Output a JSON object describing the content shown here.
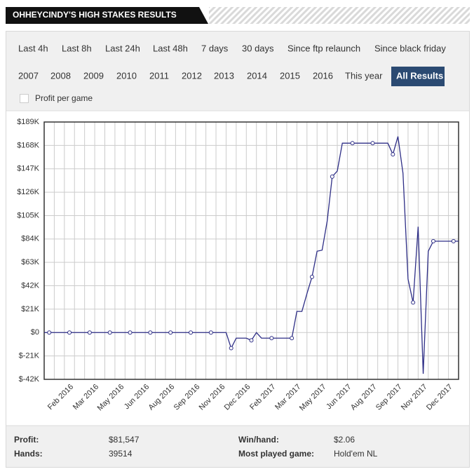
{
  "header": {
    "title": "OHHEYCINDY'S HIGH STAKES RESULTS"
  },
  "filters": {
    "periods": [
      "Last 4h",
      "Last 8h",
      "Last 24h",
      "Last 48h",
      "7 days",
      "30 days",
      "Since ftp relaunch",
      "Since black friday"
    ],
    "years": [
      "2007",
      "2008",
      "2009",
      "2010",
      "2011",
      "2012",
      "2013",
      "2014",
      "2015",
      "2016",
      "This year",
      "All Results"
    ],
    "active": "All Results"
  },
  "checkbox": {
    "label": "Profit per game",
    "checked": false
  },
  "chart_data": {
    "type": "line",
    "color": "#2e2e86",
    "categories": [
      null,
      null,
      null,
      null,
      null,
      "Feb 2016",
      null,
      null,
      null,
      null,
      "Mar 2016",
      null,
      null,
      null,
      null,
      "May 2016",
      null,
      null,
      null,
      null,
      "Jun 2016",
      null,
      null,
      null,
      null,
      "Aug 2016",
      null,
      null,
      null,
      null,
      "Sep 2016",
      null,
      null,
      null,
      null,
      "Nov 2016",
      null,
      null,
      null,
      null,
      "Dec 2016",
      null,
      null,
      null,
      null,
      "Feb 2017",
      null,
      null,
      null,
      null,
      "Mar 2017",
      null,
      null,
      null,
      null,
      "May 2017",
      null,
      null,
      null,
      null,
      "Jun 2017",
      null,
      null,
      null,
      null,
      "Aug 2017",
      null,
      null,
      null,
      null,
      "Sep 2017",
      null,
      null,
      null,
      null,
      "Nov 2017",
      null,
      null,
      null,
      null,
      "Dec 2017",
      null,
      null
    ],
    "values": [
      0,
      0,
      0,
      0,
      0,
      0,
      0,
      0,
      0,
      0,
      0,
      0,
      0,
      0,
      0,
      0,
      0,
      0,
      0,
      0,
      0,
      0,
      0,
      0,
      0,
      0,
      0,
      0,
      0,
      0,
      0,
      0,
      0,
      0,
      0,
      0,
      0,
      -14000,
      -5000,
      -5000,
      -5000,
      -7000,
      0,
      -5000,
      -5000,
      -5000,
      -5000,
      -5000,
      -5000,
      -5000,
      19000,
      19000,
      35000,
      50000,
      73000,
      74000,
      100000,
      140000,
      145000,
      170000,
      170000,
      170000,
      170000,
      170000,
      170000,
      170000,
      170000,
      170000,
      170000,
      160000,
      176000,
      143000,
      48000,
      27000,
      95000,
      -37000,
      73000,
      82000,
      82000,
      82000,
      82000,
      82000,
      82000
    ],
    "ylim": [
      -42000,
      189000
    ],
    "yticks": [
      {
        "value": -42000,
        "label": "$-42K"
      },
      {
        "value": -21000,
        "label": "$-21K"
      },
      {
        "value": 0,
        "label": "$0"
      },
      {
        "value": 21000,
        "label": "$21K"
      },
      {
        "value": 42000,
        "label": "$42K"
      },
      {
        "value": 63000,
        "label": "$63K"
      },
      {
        "value": 84000,
        "label": "$84K"
      },
      {
        "value": 105000,
        "label": "$105K"
      },
      {
        "value": 126000,
        "label": "$126K"
      },
      {
        "value": 147000,
        "label": "$147K"
      },
      {
        "value": 168000,
        "label": "$168K"
      },
      {
        "value": 189000,
        "label": "$189K"
      }
    ],
    "grid": true
  },
  "stats": {
    "rows": [
      [
        {
          "label": "Profit:",
          "value": "$81,547"
        },
        {
          "label": "Win/hand:",
          "value": "$2.06"
        }
      ],
      [
        {
          "label": "Hands:",
          "value": "39514"
        },
        {
          "label": "Most played game:",
          "value": "Hold'em NL"
        }
      ]
    ]
  }
}
